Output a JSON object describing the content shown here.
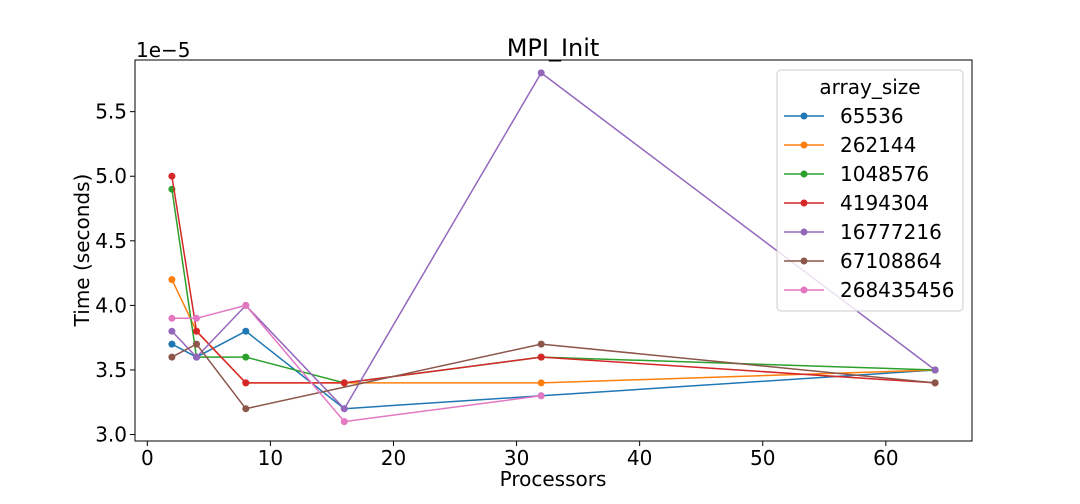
{
  "chart_data": {
    "type": "line",
    "title": "MPI_Init",
    "xlabel": "Processors",
    "ylabel": "Time (seconds)",
    "y_offset_label": "1e−5",
    "xlim": [
      -1,
      67
    ],
    "ylim": [
      2.95,
      5.9
    ],
    "xticks": [
      0,
      10,
      20,
      30,
      40,
      50,
      60
    ],
    "xtick_labels": [
      "0",
      "10",
      "20",
      "30",
      "40",
      "50",
      "60"
    ],
    "yticks": [
      3.0,
      3.5,
      4.0,
      4.5,
      5.0,
      5.5
    ],
    "ytick_labels": [
      "3.0",
      "3.5",
      "4.0",
      "4.5",
      "5.0",
      "5.5"
    ],
    "grid": false,
    "legend": {
      "title": "array_size",
      "placement": "top-right"
    },
    "series": [
      {
        "name": "65536",
        "color": "#1f77b4",
        "x": [
          2,
          4,
          8,
          16,
          32,
          64
        ],
        "y": [
          3.7,
          3.6,
          3.8,
          3.2,
          3.3,
          3.5
        ]
      },
      {
        "name": "262144",
        "color": "#ff7f0e",
        "x": [
          2,
          4,
          8,
          16,
          32,
          64
        ],
        "y": [
          4.2,
          3.8,
          3.4,
          3.4,
          3.4,
          3.5
        ]
      },
      {
        "name": "1048576",
        "color": "#2ca02c",
        "x": [
          2,
          4,
          8,
          16,
          32,
          64
        ],
        "y": [
          4.9,
          3.6,
          3.6,
          3.4,
          3.6,
          3.5
        ]
      },
      {
        "name": "4194304",
        "color": "#d62728",
        "x": [
          2,
          4,
          8,
          16,
          32,
          64
        ],
        "y": [
          5.0,
          3.8,
          3.4,
          3.4,
          3.6,
          3.4
        ]
      },
      {
        "name": "16777216",
        "color": "#9467bd",
        "x": [
          2,
          4,
          8,
          16,
          32,
          64
        ],
        "y": [
          3.8,
          3.6,
          4.0,
          3.2,
          5.8,
          3.5
        ]
      },
      {
        "name": "67108864",
        "color": "#8c564b",
        "x": [
          2,
          4,
          8,
          32,
          64
        ],
        "y": [
          3.6,
          3.7,
          3.2,
          3.7,
          3.4
        ]
      },
      {
        "name": "268435456",
        "color": "#e377c2",
        "x": [
          2,
          4,
          8,
          16,
          32
        ],
        "y": [
          3.9,
          3.9,
          4.0,
          3.1,
          3.3
        ]
      }
    ]
  }
}
